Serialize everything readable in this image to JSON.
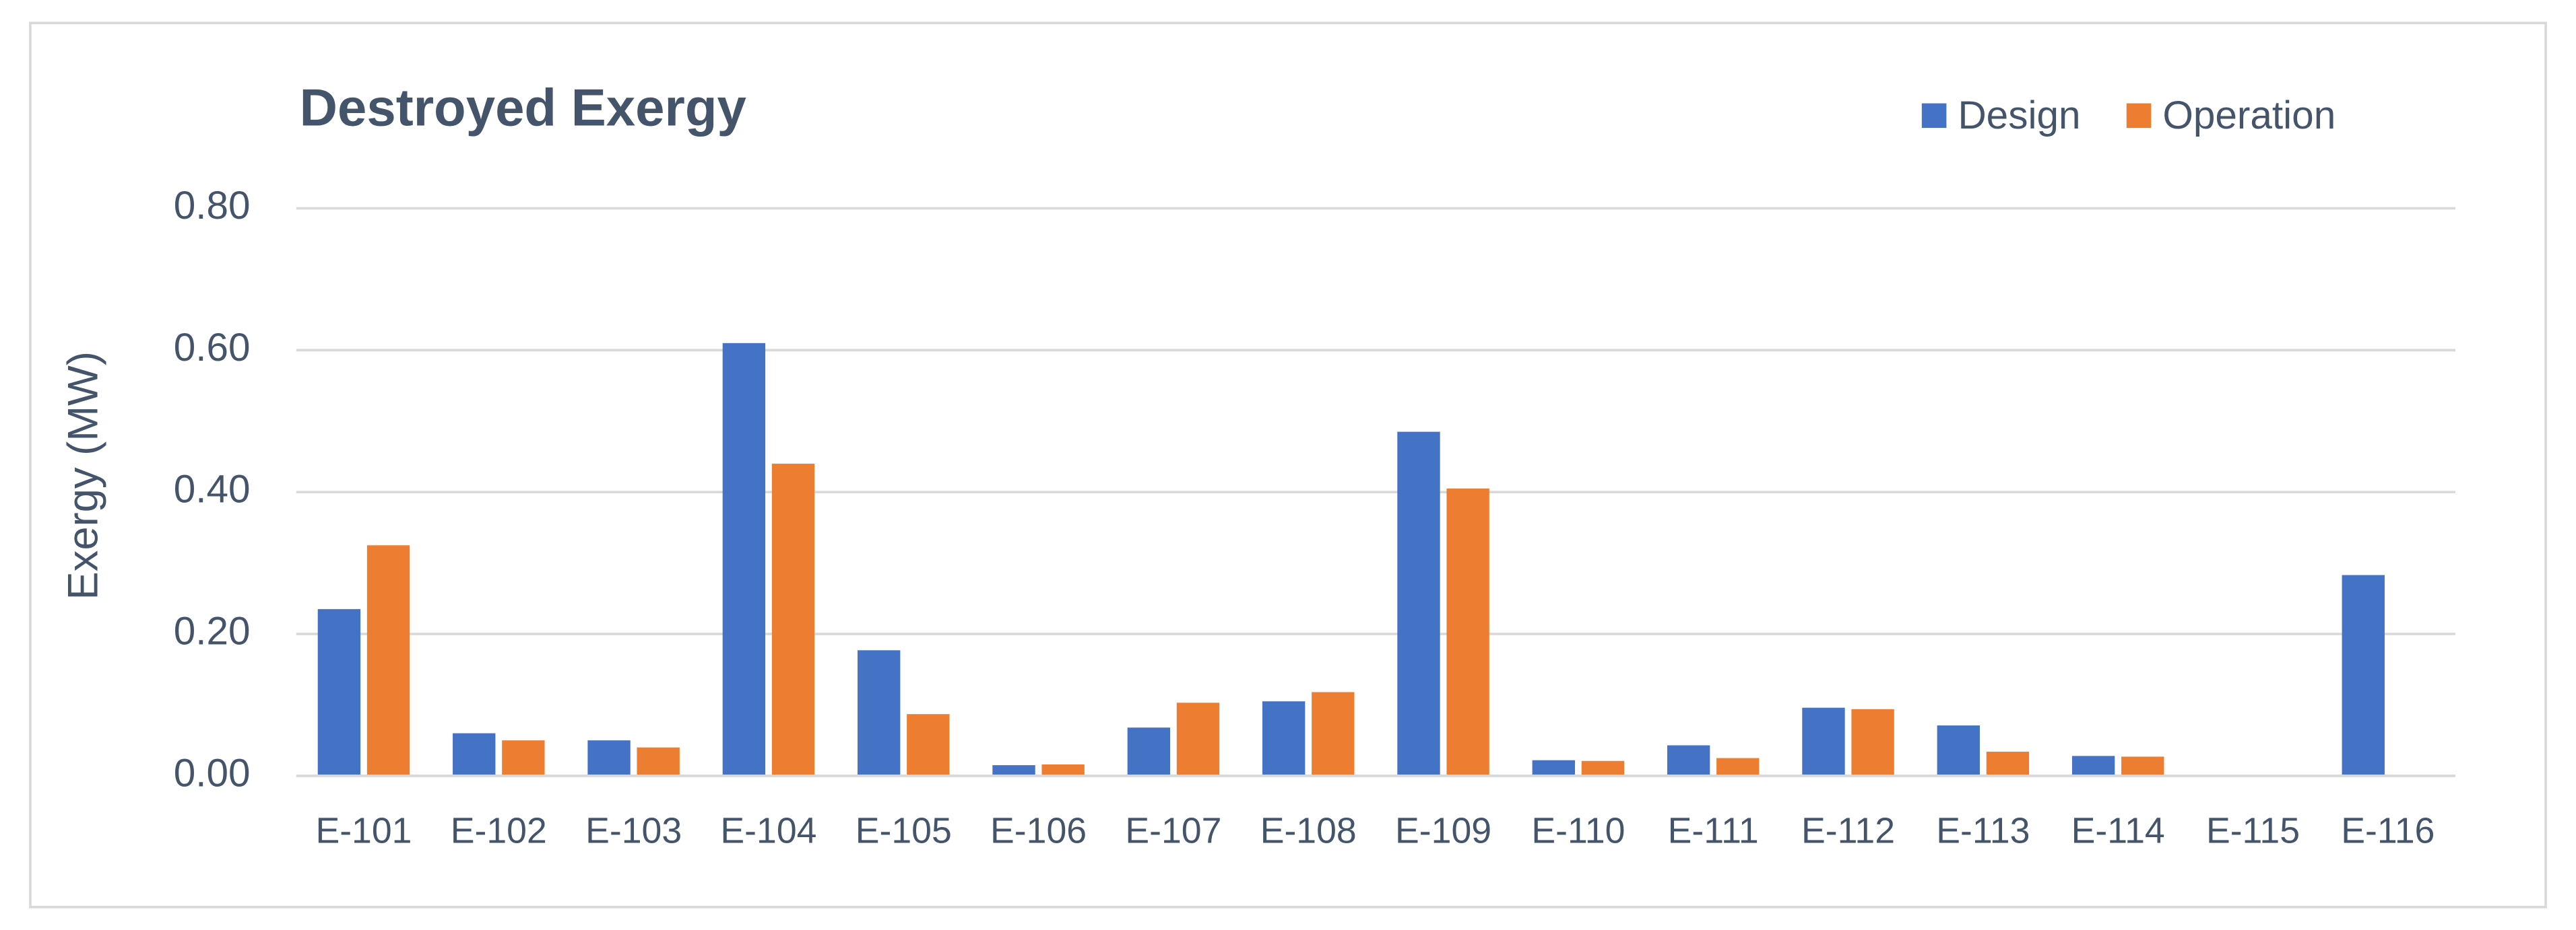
{
  "chart_data": {
    "type": "bar",
    "title": "Destroyed Exergy",
    "y_label": "Exergy (MW)",
    "categories": [
      "E-101",
      "E-102",
      "E-103",
      "E-104",
      "E-105",
      "E-106",
      "E-107",
      "E-108",
      "E-109",
      "E-110",
      "E-111",
      "E-112",
      "E-113",
      "E-114",
      "E-115",
      "E-116"
    ],
    "series": [
      {
        "name": "Design",
        "color": "#4472c4",
        "values": [
          0.235,
          0.06,
          0.05,
          0.61,
          0.177,
          0.015,
          0.068,
          0.105,
          0.485,
          0.022,
          0.043,
          0.096,
          0.071,
          0.028,
          0,
          0.283
        ]
      },
      {
        "name": "Operation",
        "color": "#ed7d31",
        "values": [
          0.325,
          0.05,
          0.04,
          0.44,
          0.087,
          0.016,
          0.103,
          0.118,
          0.405,
          0.021,
          0.025,
          0.094,
          0.034,
          0.027,
          0,
          0
        ]
      }
    ],
    "ylim": [
      0,
      0.8
    ],
    "yticks": [
      {
        "value": 0,
        "label": "0.00"
      },
      {
        "value": 0.2,
        "label": "0.20"
      },
      {
        "value": 0.4,
        "label": "0.40"
      },
      {
        "value": 0.6,
        "label": "0.60"
      },
      {
        "value": 0.8,
        "label": "0.80"
      }
    ],
    "grid": true,
    "legend": "top-right"
  }
}
